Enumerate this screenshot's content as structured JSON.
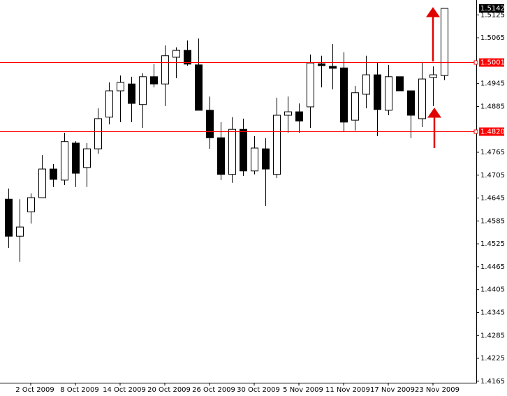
{
  "chart_data": {
    "type": "candlestick",
    "categories": [
      null,
      null,
      "2 Oct 2009",
      null,
      null,
      null,
      "8 Oct 2009",
      null,
      null,
      null,
      "14 Oct 2009",
      null,
      null,
      null,
      "20 Oct 2009",
      null,
      null,
      null,
      "26 Oct 2009",
      null,
      null,
      null,
      "30 Oct 2009",
      null,
      null,
      null,
      "5 Nov 2009",
      null,
      null,
      null,
      "11 Nov 2009",
      null,
      null,
      null,
      "17 Nov 2009",
      null,
      null,
      null,
      "23 Nov 2009",
      null
    ],
    "open": [
      1.4642,
      1.4545,
      1.4609,
      1.4646,
      1.4721,
      1.4692,
      1.4789,
      1.4725,
      1.4774,
      1.4857,
      1.4926,
      1.4944,
      1.489,
      1.4963,
      1.4944,
      1.5014,
      1.5032,
      1.4994,
      1.4875,
      1.4803,
      1.4707,
      1.4825,
      1.4716,
      1.4774,
      1.4707,
      1.4862,
      1.4871,
      1.4884,
      1.4997,
      1.499,
      1.4986,
      1.4849,
      1.4917,
      1.4968,
      1.4875,
      1.4963,
      1.4926,
      1.4853,
      1.4961,
      1.4966
    ],
    "high": [
      1.467,
      1.4642,
      1.4657,
      1.4758,
      1.4734,
      1.4816,
      1.4794,
      1.4789,
      1.488,
      1.4948,
      1.4966,
      1.4963,
      1.4972,
      1.4996,
      1.5045,
      1.504,
      1.5058,
      1.5063,
      1.4911,
      1.4844,
      1.4857,
      1.4853,
      1.4807,
      1.4802,
      1.4908,
      1.4911,
      1.4893,
      1.5021,
      1.5018,
      1.5049,
      1.5027,
      1.4939,
      1.5018,
      1.4999,
      1.4994,
      1.4963,
      1.4926,
      1.4999,
      1.499,
      1.5142
    ],
    "low": [
      1.4514,
      1.4478,
      1.4578,
      1.4646,
      1.4674,
      1.4679,
      1.4674,
      1.4674,
      1.4761,
      1.4838,
      1.4844,
      1.4844,
      1.4829,
      1.4935,
      1.4886,
      1.4959,
      1.4992,
      1.4875,
      1.4774,
      1.4692,
      1.4685,
      1.4703,
      1.4707,
      1.4624,
      1.4697,
      1.4816,
      1.4816,
      1.4829,
      1.4935,
      1.493,
      1.482,
      1.4822,
      1.488,
      1.4807,
      1.4862,
      1.4935,
      1.4802,
      1.4831,
      1.4886,
      1.4954
    ],
    "close": [
      1.4545,
      1.4569,
      1.4646,
      1.4721,
      1.4694,
      1.4793,
      1.471,
      1.4774,
      1.4853,
      1.4926,
      1.4948,
      1.4893,
      1.4963,
      1.4944,
      1.5018,
      1.5032,
      1.4996,
      1.4875,
      1.4803,
      1.4707,
      1.4825,
      1.4716,
      1.4776,
      1.4721,
      1.4862,
      1.4871,
      1.4847,
      1.4999,
      1.4992,
      1.4985,
      1.4844,
      1.4921,
      1.4968,
      1.4877,
      1.4963,
      1.4926,
      1.4862,
      1.4957,
      1.4968,
      1.5142
    ],
    "up_color": "#ffffff",
    "down_color": "#000000",
    "ylim": [
      1.4161,
      1.5164
    ],
    "yticks": [
      1.5125,
      1.5065,
      1.4945,
      1.4885,
      1.4765,
      1.4705,
      1.4645,
      1.4585,
      1.4525,
      1.4465,
      1.4405,
      1.4345,
      1.4285,
      1.4225,
      1.4165
    ],
    "hlines": [
      {
        "value": 1.5001,
        "label": "1.5001"
      },
      {
        "value": 1.482,
        "label": "1.4820"
      }
    ],
    "hline_color": "#ff0000",
    "current_price": 1.5142
  }
}
